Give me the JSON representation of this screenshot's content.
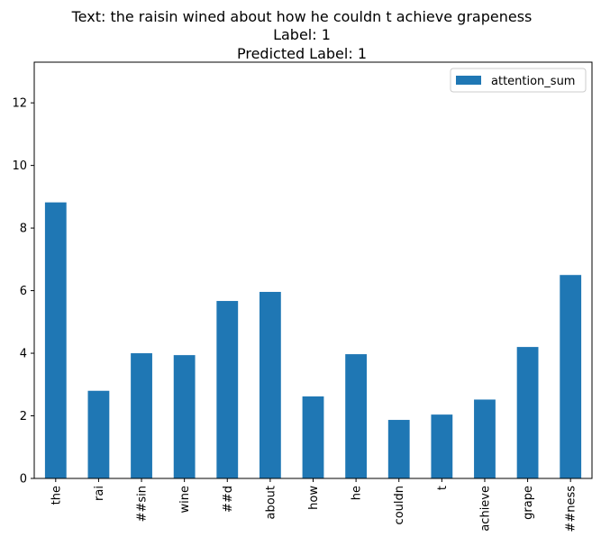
{
  "chart_data": {
    "type": "bar",
    "title_lines": [
      "Text: the raisin wined about how he couldn t achieve grapeness",
      "Label: 1",
      "Predicted Label: 1"
    ],
    "categories": [
      "the",
      "rai",
      "##sin",
      "wine",
      "##d",
      "about",
      "how",
      "he",
      "couldn",
      "t",
      "achieve",
      "grape",
      "##ness"
    ],
    "series": [
      {
        "name": "attention_sum",
        "values": [
          8.82,
          2.8,
          4.0,
          3.94,
          5.67,
          5.96,
          2.62,
          3.97,
          1.87,
          2.04,
          2.52,
          4.2,
          6.5
        ],
        "color": "#1f77b4"
      }
    ],
    "ylim": [
      0,
      13.3
    ],
    "yticks": [
      0,
      2,
      4,
      6,
      8,
      10,
      12
    ],
    "grid": false,
    "legend_position": "top-right"
  }
}
